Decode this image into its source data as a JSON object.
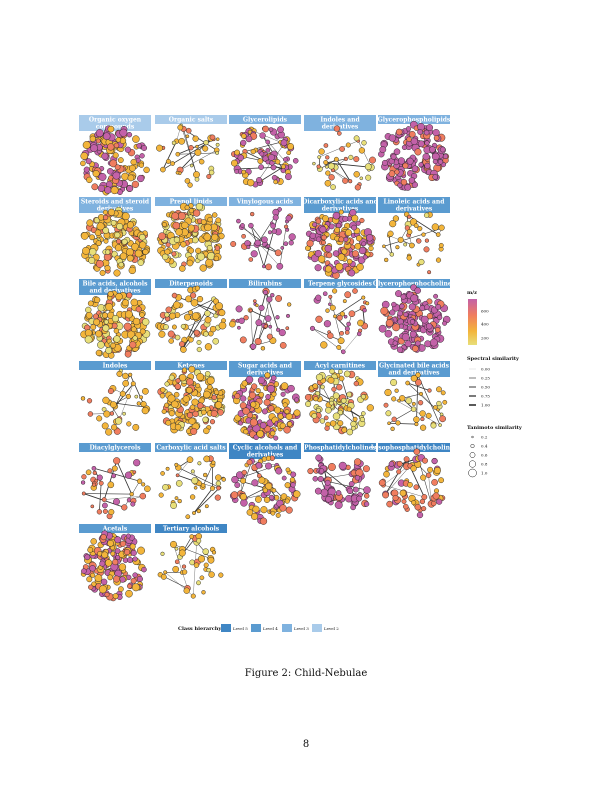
{
  "figure": {
    "caption": "Figure 2: Child-Nebulae",
    "page_number": "8"
  },
  "colors": {
    "level5": "#3f86c4",
    "level4": "#5a9bd0",
    "level3": "#7fb2df",
    "level2": "#a9cbea",
    "mz_low": "#e8df79",
    "mz_mid": "#f3b53b",
    "mz_midhigh": "#f07d5f",
    "mz_high": "#c361a8"
  },
  "panels": [
    {
      "label": "Organic oxygen compounds",
      "level": 2,
      "style": "dense-mixed"
    },
    {
      "label": "Organic salts",
      "level": 2,
      "style": "sparse-yellow"
    },
    {
      "label": "Glycerolipids",
      "level": 3,
      "style": "ring-mixed"
    },
    {
      "label": "Indoles and derivatives",
      "level": 3,
      "style": "sparse-light"
    },
    {
      "label": "Glycerophospholipids",
      "level": 3,
      "style": "dense-pink"
    },
    {
      "label": "Steroids and steroid derivatives",
      "level": 3,
      "style": "dense-yellow"
    },
    {
      "label": "Prenol lipids",
      "level": 3,
      "style": "dense-yellow"
    },
    {
      "label": "Vinylogous acids",
      "level": 3,
      "style": "sparse-pink"
    },
    {
      "label": "Dicarboxylic acids and derivatives",
      "level": 4,
      "style": "dense-mixed"
    },
    {
      "label": "Linoleic acids and derivatives",
      "level": 4,
      "style": "sparse-yellow"
    },
    {
      "label": "Bile acids, alcohols and derivatives",
      "level": 4,
      "style": "dense-yellow"
    },
    {
      "label": "Diterpenoids",
      "level": 4,
      "style": "medium-yellow"
    },
    {
      "label": "Bilirubins",
      "level": 4,
      "style": "sparse-coral"
    },
    {
      "label": "Terpene glycosides",
      "level": 4,
      "style": "sparse-coral"
    },
    {
      "label": "Glycerophosphocholines",
      "level": 4,
      "style": "dense-pink"
    },
    {
      "label": "Indoles",
      "level": 4,
      "style": "sparse-yellow"
    },
    {
      "label": "Ketones",
      "level": 4,
      "style": "dense-yellow"
    },
    {
      "label": "Sugar acids and derivatives",
      "level": 4,
      "style": "dense-mixed"
    },
    {
      "label": "Acyl carnitines",
      "level": 4,
      "style": "ring-light"
    },
    {
      "label": "Glycinated bile acids and derivatives",
      "level": 4,
      "style": "sparse-yellow"
    },
    {
      "label": "Diacylglycerols",
      "level": 4,
      "style": "sparse-coral"
    },
    {
      "label": "Carboxylic acid salts",
      "level": 4,
      "style": "sparse-yellow"
    },
    {
      "label": "Cyclic alcohols and derivatives",
      "level": 5,
      "style": "ring-mixed"
    },
    {
      "label": "Phosphatidylcholines",
      "level": 5,
      "style": "clusters-pink"
    },
    {
      "label": "Lysophosphatidylcholines",
      "level": 5,
      "style": "medium-coral"
    },
    {
      "label": "Acetals",
      "level": 4,
      "style": "dense-mixed"
    },
    {
      "label": "Tertiary alcohols",
      "level": 5,
      "style": "sparse-yellow"
    }
  ],
  "legend": {
    "mz": {
      "title": "m/z",
      "ticks": [
        {
          "label": "600",
          "value": 600
        },
        {
          "label": "400",
          "value": 400
        },
        {
          "label": "200",
          "value": 200
        }
      ]
    },
    "spectral": {
      "title": "Spectral similarity",
      "items": [
        "0.00",
        "0.25",
        "0.50",
        "0.75",
        "1.00"
      ]
    },
    "tanimoto": {
      "title": "Tanimoto similarity",
      "items": [
        "0.2",
        "0.4",
        "0.6",
        "0.8",
        "1.0"
      ]
    },
    "hierarchy": {
      "title": "Class hierarchy",
      "items": [
        {
          "label": "Level 5",
          "level": 5
        },
        {
          "label": "Level 4",
          "level": 4
        },
        {
          "label": "Level 3",
          "level": 3
        },
        {
          "label": "Level 2",
          "level": 2
        }
      ]
    }
  }
}
